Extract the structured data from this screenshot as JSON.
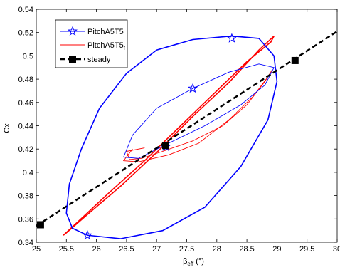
{
  "chart_data": {
    "type": "line",
    "xlabel": "β",
    "xlabel_sub": "eff",
    "xlabel_unit": " (°)",
    "ylabel": "Cx",
    "xlim": [
      25,
      30
    ],
    "ylim": [
      0.34,
      0.54
    ],
    "xticks": [
      "25",
      "25.5",
      "26",
      "26.5",
      "27",
      "27.5",
      "28",
      "28.5",
      "29",
      "29.5",
      "30"
    ],
    "yticks": [
      "0.34",
      "0.36",
      "0.38",
      "0.4",
      "0.42",
      "0.44",
      "0.46",
      "0.48",
      "0.5",
      "0.52",
      "0.54"
    ],
    "legend_position": "top-left",
    "series": [
      {
        "name": "PitchA5T5",
        "color": "#0000ff",
        "marker": "star",
        "outer_loop": [
          [
            25.85,
            0.346
          ],
          [
            25.6,
            0.352
          ],
          [
            25.5,
            0.365
          ],
          [
            25.55,
            0.39
          ],
          [
            25.75,
            0.42
          ],
          [
            26.05,
            0.455
          ],
          [
            26.5,
            0.485
          ],
          [
            27.0,
            0.505
          ],
          [
            27.6,
            0.514
          ],
          [
            28.25,
            0.517
          ],
          [
            28.7,
            0.515
          ],
          [
            28.95,
            0.5
          ],
          [
            29.0,
            0.478
          ],
          [
            28.85,
            0.445
          ],
          [
            28.4,
            0.405
          ],
          [
            27.8,
            0.37
          ],
          [
            27.1,
            0.35
          ],
          [
            26.4,
            0.343
          ],
          [
            25.85,
            0.346
          ]
        ],
        "inner_loop": [
          [
            26.45,
            0.413
          ],
          [
            26.6,
            0.432
          ],
          [
            27.0,
            0.455
          ],
          [
            27.6,
            0.472
          ],
          [
            28.2,
            0.486
          ],
          [
            28.7,
            0.493
          ],
          [
            28.95,
            0.49
          ],
          [
            28.8,
            0.475
          ],
          [
            28.4,
            0.458
          ],
          [
            27.8,
            0.44
          ],
          [
            27.2,
            0.425
          ],
          [
            26.7,
            0.412
          ],
          [
            26.45,
            0.413
          ]
        ],
        "markers": [
          [
            25.85,
            0.346
          ],
          [
            27.6,
            0.472
          ],
          [
            28.25,
            0.515
          ],
          [
            27.15,
            0.422
          ]
        ]
      },
      {
        "name": "PitchA5T5",
        "name_sub": "f",
        "color": "#ff0000",
        "marker": "none",
        "outer_loop": [
          [
            25.5,
            0.348
          ],
          [
            25.45,
            0.346
          ],
          [
            25.7,
            0.358
          ],
          [
            26.2,
            0.382
          ],
          [
            26.8,
            0.41
          ],
          [
            27.4,
            0.44
          ],
          [
            28.0,
            0.47
          ],
          [
            28.5,
            0.495
          ],
          [
            28.9,
            0.512
          ],
          [
            28.95,
            0.517
          ],
          [
            28.7,
            0.505
          ],
          [
            28.2,
            0.477
          ],
          [
            27.6,
            0.448
          ],
          [
            27.0,
            0.417
          ],
          [
            26.4,
            0.388
          ],
          [
            25.9,
            0.366
          ],
          [
            25.5,
            0.348
          ]
        ],
        "inner_loop": [
          [
            26.6,
            0.42
          ],
          [
            26.45,
            0.41
          ],
          [
            26.7,
            0.409
          ],
          [
            27.2,
            0.415
          ],
          [
            27.7,
            0.425
          ],
          [
            28.2,
            0.445
          ],
          [
            28.6,
            0.465
          ],
          [
            28.85,
            0.482
          ],
          [
            28.92,
            0.488
          ],
          [
            28.8,
            0.478
          ],
          [
            28.5,
            0.458
          ],
          [
            28.1,
            0.44
          ],
          [
            27.6,
            0.427
          ],
          [
            27.1,
            0.418
          ],
          [
            26.75,
            0.412
          ],
          [
            26.55,
            0.411
          ],
          [
            26.5,
            0.418
          ],
          [
            26.8,
            0.421
          ]
        ]
      },
      {
        "name": "steady",
        "color": "#000000",
        "marker": "square",
        "dashed": true,
        "line": [
          [
            25.0,
            0.354
          ],
          [
            30.0,
            0.521
          ]
        ],
        "points": [
          [
            25.07,
            0.355
          ],
          [
            27.15,
            0.423
          ],
          [
            29.3,
            0.496
          ]
        ]
      }
    ]
  }
}
